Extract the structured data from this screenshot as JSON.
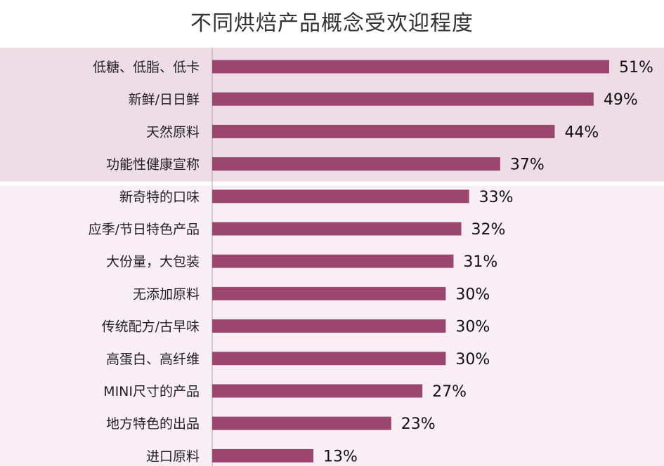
{
  "chart_data": {
    "type": "bar",
    "orientation": "horizontal",
    "title": "不同烘焙产品概念受欢迎程度",
    "categories": [
      "低糖、低脂、低卡",
      "新鲜/日日鲜",
      "天然原料",
      "功能性健康宣称",
      "新奇特的口味",
      "应季/节日特色产品",
      "大份量，大包装",
      "无添加原料",
      "传统配方/古早味",
      "高蛋白、高纤维",
      "MINI尺寸的产品",
      "地方特色的出品",
      "进口原料"
    ],
    "values": [
      51,
      49,
      44,
      37,
      33,
      32,
      31,
      30,
      30,
      30,
      27,
      23,
      13
    ],
    "value_labels": [
      "51%",
      "49%",
      "44%",
      "37%",
      "33%",
      "32%",
      "31%",
      "30%",
      "30%",
      "30%",
      "27%",
      "23%",
      "13%"
    ],
    "unit": "%",
    "xlim": [
      0,
      51
    ],
    "grid": false,
    "legend": "none",
    "highlighted_top_n": 4,
    "colors": {
      "bar": "#9a466f",
      "highlight_band": "#efdde5",
      "lower_band": "#f8eef3",
      "axis": "#aaaaaa"
    }
  }
}
